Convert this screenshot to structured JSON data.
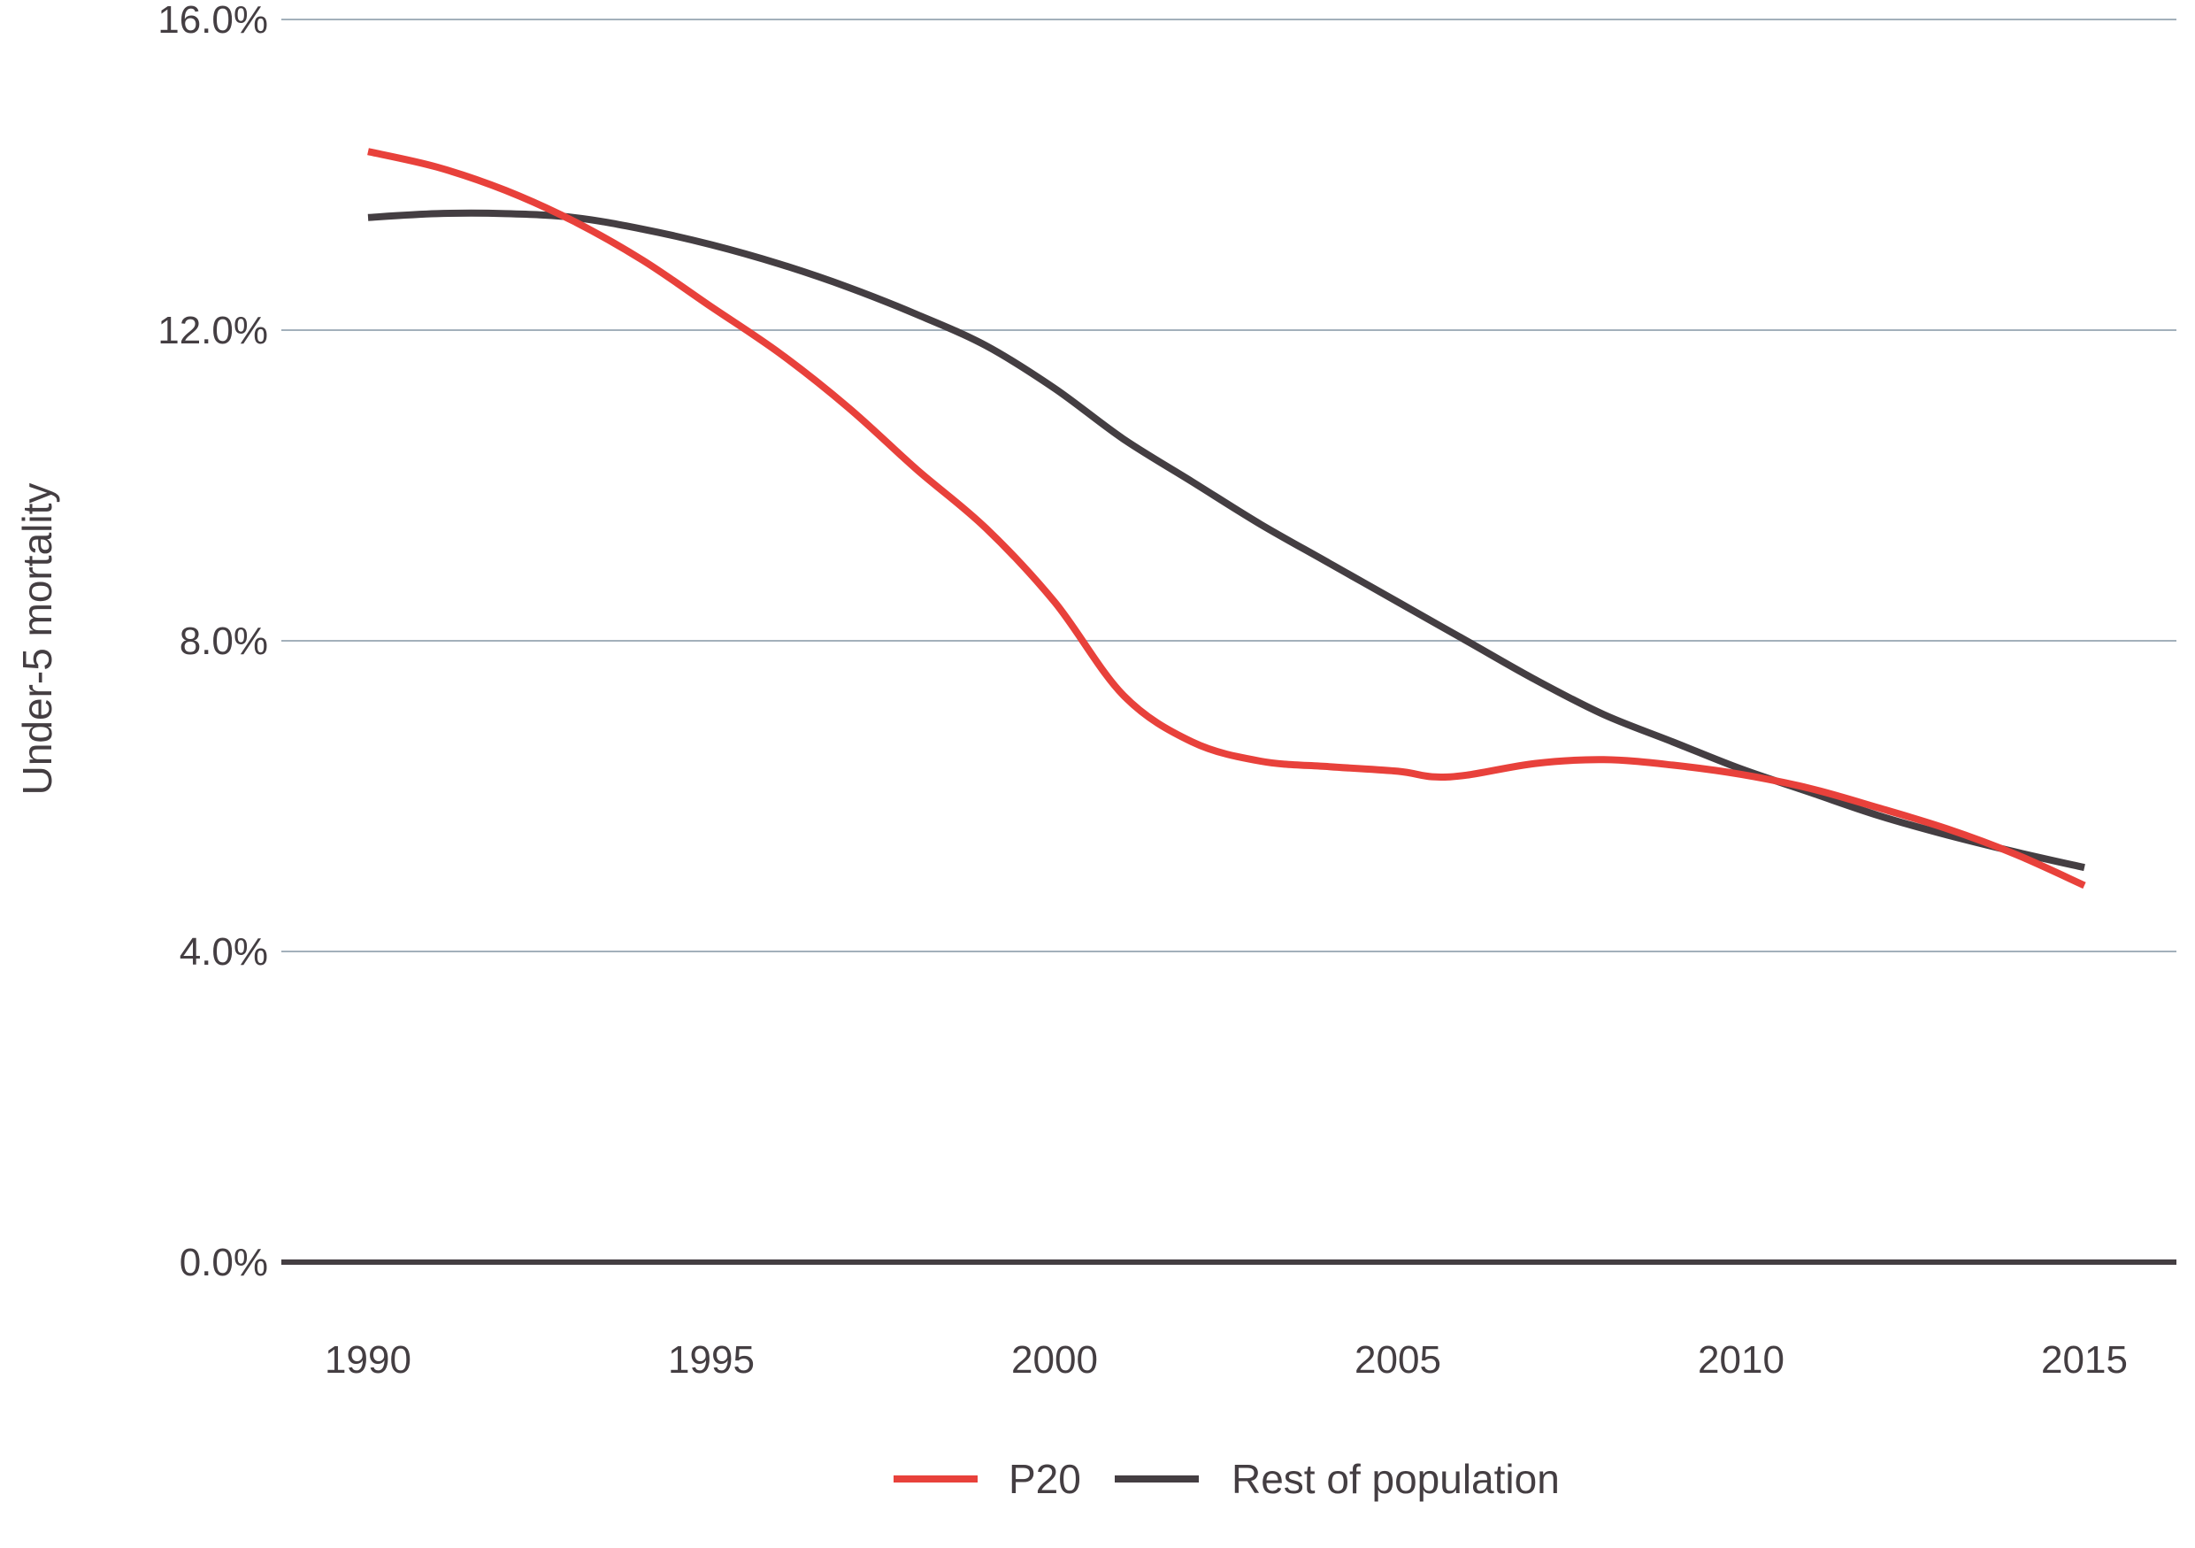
{
  "chart_data": {
    "type": "line",
    "ylabel": "Under-5 mortality",
    "ylim": [
      0,
      16
    ],
    "yticks": [
      {
        "value": 0,
        "label": "0.0%"
      },
      {
        "value": 4,
        "label": "4.0%"
      },
      {
        "value": 8,
        "label": "8.0%"
      },
      {
        "value": 12,
        "label": "12.0%"
      },
      {
        "value": 16,
        "label": "16.0%"
      }
    ],
    "xlim": [
      1989.9,
      2016.3
    ],
    "xticks": [
      {
        "value": 1990,
        "label": "1990"
      },
      {
        "value": 1995,
        "label": "1995"
      },
      {
        "value": 2000,
        "label": "2000"
      },
      {
        "value": 2005,
        "label": "2005"
      },
      {
        "value": 2010,
        "label": "2010"
      },
      {
        "value": 2015,
        "label": "2015"
      }
    ],
    "grid": "horizontal",
    "legend_position": "bottom-center",
    "series": [
      {
        "name": "P20",
        "color": "#e8413b",
        "x": [
          1990,
          1991,
          1992,
          1993,
          1994,
          1995,
          1996,
          1997,
          1998,
          1999,
          2000,
          2001,
          2002,
          2003,
          2004,
          2005,
          2005.5,
          2006,
          2007,
          2008,
          2009,
          2010,
          2011,
          2012,
          2013,
          2014,
          2015
        ],
        "y": [
          14.3,
          14.1,
          13.8,
          13.4,
          12.9,
          12.3,
          11.7,
          11.0,
          10.2,
          9.45,
          8.5,
          7.3,
          6.7,
          6.45,
          6.38,
          6.32,
          6.25,
          6.27,
          6.42,
          6.47,
          6.4,
          6.28,
          6.1,
          5.85,
          5.58,
          5.25,
          4.85
        ]
      },
      {
        "name": "Rest of population",
        "color": "#443e42",
        "x": [
          1990,
          1991,
          1992,
          1993,
          1994,
          1995,
          1996,
          1997,
          1998,
          1999,
          2000,
          2001,
          2002,
          2003,
          2004,
          2005,
          2006,
          2007,
          2008,
          2009,
          2010,
          2011,
          2012,
          2013,
          2014,
          2015
        ],
        "y": [
          13.45,
          13.5,
          13.5,
          13.45,
          13.3,
          13.1,
          12.85,
          12.55,
          12.2,
          11.8,
          11.25,
          10.6,
          10.05,
          9.5,
          9.0,
          8.5,
          8.0,
          7.5,
          7.05,
          6.7,
          6.35,
          6.05,
          5.75,
          5.5,
          5.28,
          5.08
        ]
      }
    ]
  }
}
